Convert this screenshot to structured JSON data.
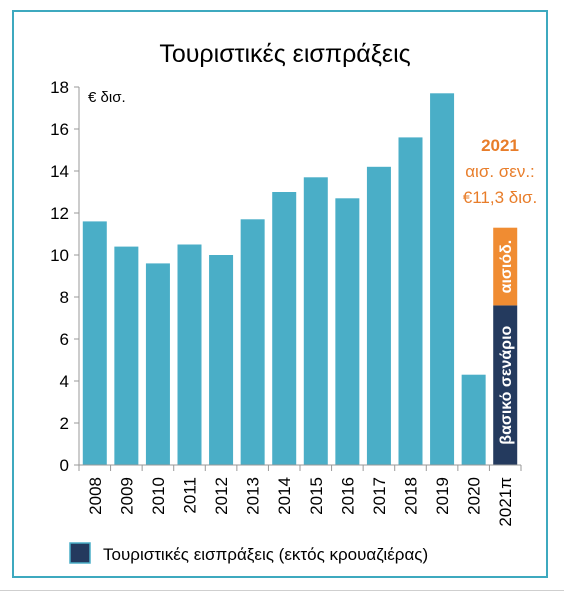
{
  "chart_data": {
    "type": "bar",
    "title": "Τουριστικές εισπράξεις",
    "unit_label": "€ δισ.",
    "categories": [
      "2008",
      "2009",
      "2010",
      "2011",
      "2012",
      "2013",
      "2014",
      "2015",
      "2016",
      "2017",
      "2018",
      "2019",
      "2020",
      "2021π"
    ],
    "series": [
      {
        "name": "Τουριστικές εισπράξεις (εκτός κρουαζιέρας)",
        "values": [
          11.6,
          10.4,
          9.6,
          10.5,
          10.0,
          11.7,
          13.0,
          13.7,
          12.7,
          14.2,
          15.6,
          17.7,
          4.3,
          null
        ]
      }
    ],
    "forecast_2021": {
      "baseline_label": "βασικό σενάριο",
      "baseline_value": 7.6,
      "optimistic_label": "αισιόδ.",
      "optimistic_total": 11.3,
      "baseline_color": "#243a5e",
      "optimistic_color": "#f08c32"
    },
    "annotation": {
      "line1": "2021",
      "line2": "αισ. σεν.:",
      "line3": "€11,3 δισ."
    },
    "ylim": [
      0,
      18
    ],
    "yticks": [
      0,
      2,
      4,
      6,
      8,
      10,
      12,
      14,
      16,
      18
    ],
    "bar_color": "#4aaec7",
    "legend": {
      "label": "Τουριστικές εισπράξεις (εκτός κρουαζιέρας)",
      "swatch_color": "#243a5e",
      "placement": "bottom"
    }
  }
}
